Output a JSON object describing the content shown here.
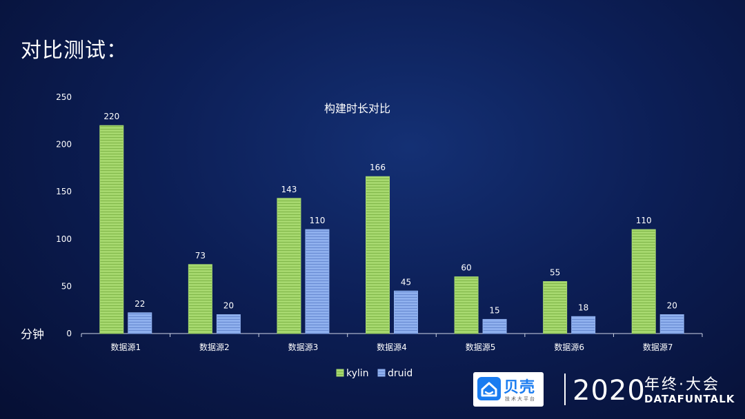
{
  "slide": {
    "title": "对比测试："
  },
  "chart_data": {
    "type": "bar",
    "title": "构建时长对比",
    "ylabel": "分钟",
    "xlabel": "",
    "ylim": [
      0,
      250
    ],
    "yticks": [
      0,
      50,
      100,
      150,
      200,
      250
    ],
    "categories": [
      "数据源1",
      "数据源2",
      "数据源3",
      "数据源4",
      "数据源5",
      "数据源6",
      "数据源7"
    ],
    "series": [
      {
        "name": "kylin",
        "values": [
          220,
          73,
          143,
          166,
          60,
          55,
          110
        ],
        "color": "#a6d86e"
      },
      {
        "name": "druid",
        "values": [
          22,
          20,
          110,
          45,
          15,
          18,
          20
        ],
        "color": "#8fb0ee"
      }
    ],
    "data_labels": true,
    "grid": false,
    "legend": "bottom"
  },
  "branding": {
    "logo_name": "贝壳",
    "logo_sub": "技术大平台",
    "event_year": "2020",
    "event_name": "年终·大会",
    "event_org": "DATAFUNTALK"
  },
  "colors": {
    "background": "#0c1e55",
    "kylin": "#a6d86e",
    "druid": "#8fb0ee",
    "logo_blue": "#1a7cf0"
  }
}
